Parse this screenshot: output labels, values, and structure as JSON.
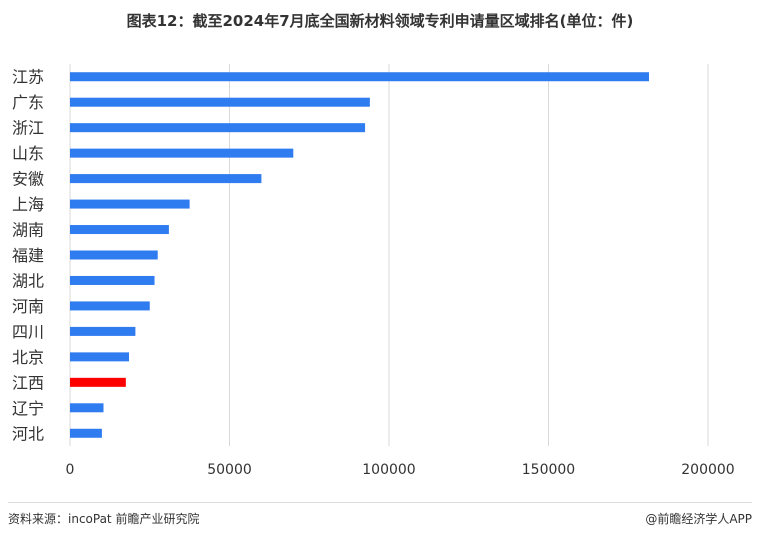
{
  "header": {
    "title": "图表12：截至2024年7月底全国新材料领域专利申请量区域排名(单位：件)"
  },
  "chart_data": {
    "type": "bar",
    "orientation": "horizontal",
    "categories": [
      "江苏",
      "广东",
      "浙江",
      "山东",
      "安徽",
      "上海",
      "湖南",
      "福建",
      "湖北",
      "河南",
      "四川",
      "北京",
      "江西",
      "辽宁",
      "河北"
    ],
    "values": [
      181500,
      94000,
      92500,
      70000,
      60000,
      37500,
      31000,
      27500,
      26500,
      25000,
      20500,
      18500,
      17500,
      10500,
      10000
    ],
    "highlight": "江西",
    "xlim": [
      0,
      200000
    ],
    "xticks": [
      "0",
      "50000",
      "100000",
      "150000",
      "200000"
    ],
    "grid": true,
    "colors": {
      "bar": "#2e7cf0",
      "highlight": "#ff0000",
      "grid": "#d9d9d9",
      "text": "#333333"
    }
  },
  "footer": {
    "source": "资料来源：incoPat 前瞻产业研究院",
    "credit": "@前瞻经济学人APP"
  }
}
